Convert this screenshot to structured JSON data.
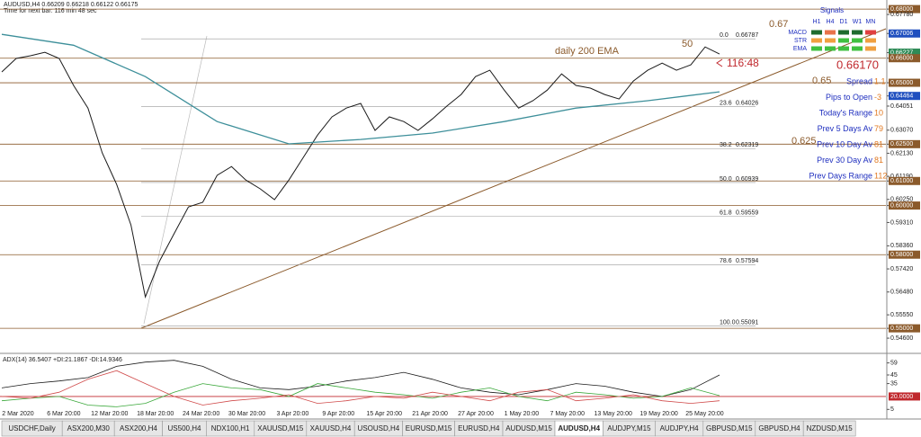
{
  "header": {
    "symbol_line": "AUDUSD,H4  0.66209 0.66218 0.66122 0.66175",
    "timer": "Time for next bar: 116 min 48 sec"
  },
  "chart_data": {
    "type": "line",
    "ylim": [
      0.5409,
      0.6837
    ],
    "yticks": [
      {
        "value": 0.68,
        "label": "0.68000",
        "box": "#8b5a2b"
      },
      {
        "value": 0.6778,
        "label": "0.67780"
      },
      {
        "value": 0.67006,
        "label": "0.67006",
        "box": "#1f4fbf"
      },
      {
        "value": 0.66227,
        "label": "0.66227",
        "box": "#2e8b57"
      },
      {
        "value": 0.66,
        "label": "0.66000",
        "box": "#8b5a2b"
      },
      {
        "value": 0.65,
        "label": "0.65000",
        "box": "#8b5a2b"
      },
      {
        "value": 0.64464,
        "label": "0.64464",
        "box": "#1f4fbf"
      },
      {
        "value": 0.6405,
        "label": "0.64051"
      },
      {
        "value": 0.6307,
        "label": "0.63070"
      },
      {
        "value": 0.625,
        "label": "0.62500",
        "box": "#8b5a2b"
      },
      {
        "value": 0.6213,
        "label": "0.62130"
      },
      {
        "value": 0.6119,
        "label": "0.61190"
      },
      {
        "value": 0.61,
        "label": "0.61000",
        "box": "#8b5a2b"
      },
      {
        "value": 0.6025,
        "label": "0.60250"
      },
      {
        "value": 0.6,
        "label": "0.60000",
        "box": "#8b5a2b"
      },
      {
        "value": 0.5931,
        "label": "0.59310"
      },
      {
        "value": 0.5836,
        "label": "0.58360"
      },
      {
        "value": 0.58,
        "label": "0.58000",
        "box": "#8b5a2b"
      },
      {
        "value": 0.5742,
        "label": "0.57420"
      },
      {
        "value": 0.5648,
        "label": "0.56480"
      },
      {
        "value": 0.5555,
        "label": "0.55550"
      },
      {
        "value": 0.55,
        "label": "0.55000",
        "box": "#8b5a2b"
      },
      {
        "value": 0.546,
        "label": "0.54600"
      }
    ],
    "xticks": [
      "2 Mar 2020",
      "6 Mar 20:00",
      "12 Mar 20:00",
      "18 Mar 20:00",
      "24 Mar 20:00",
      "30 Mar 20:00",
      "3 Apr 20:00",
      "9 Apr 20:00",
      "15 Apr 20:00",
      "21 Apr 20:00",
      "27 Apr 20:00",
      "1 May 20:00",
      "7 May 20:00",
      "13 May 20:00",
      "19 May 20:00",
      "25 May 20:00"
    ],
    "levels": [
      0.68,
      0.66,
      0.65,
      0.625,
      0.61,
      0.6,
      0.58,
      0.55
    ],
    "fib": [
      {
        "level": "0.0",
        "price": 0.66787
      },
      {
        "level": "23.6",
        "price": 0.64026
      },
      {
        "level": "38.2",
        "price": 0.62319
      },
      {
        "level": "50.0",
        "price": 0.60939
      },
      {
        "level": "61.8",
        "price": 0.59559
      },
      {
        "level": "78.6",
        "price": 0.57594
      },
      {
        "level": "100.0",
        "price": 0.55091
      }
    ],
    "series": [
      {
        "color": "#1a1a1a",
        "values": [
          0.6544,
          0.6599,
          0.661,
          0.6624,
          0.6599,
          0.6489,
          0.6397,
          0.6214,
          0.6086,
          0.5921,
          0.5628,
          0.5775,
          0.5885,
          0.5994,
          0.6013,
          0.6123,
          0.6159,
          0.6104,
          0.6068,
          0.6024,
          0.6104,
          0.6196,
          0.6287,
          0.6361,
          0.6397,
          0.6416,
          0.6306,
          0.6361,
          0.6342,
          0.6306,
          0.6353,
          0.6405,
          0.6452,
          0.6525,
          0.6551,
          0.647,
          0.6397,
          0.6427,
          0.647,
          0.6536,
          0.6489,
          0.6478,
          0.6452,
          0.6434,
          0.6507,
          0.6551,
          0.658,
          0.6551,
          0.6573,
          0.6646,
          0.6617
        ]
      },
      {
        "color": "#3d8f9a",
        "values": [
          0.6697,
          0.6653,
          0.6525,
          0.6342,
          0.6251,
          0.6269,
          0.6295,
          0.6342,
          0.6397,
          0.6427,
          0.6463
        ]
      }
    ],
    "annotations": [
      {
        "text": "0.67",
        "color": "#8b5a2b"
      },
      {
        "text": "0.65",
        "color": "#8b5a2b"
      },
      {
        "text": "0.625",
        "color": "#8b5a2b"
      },
      {
        "text": "daily 200 EMA",
        "color": "#8b5a2b"
      },
      {
        "text": "50",
        "color": "#8b5a2b"
      },
      {
        "text": "116:48",
        "color": "#c0282d"
      },
      {
        "text": "0.66170",
        "color": "#c0282d"
      }
    ]
  },
  "info": [
    {
      "label": "Spread",
      "value": 1.1
    },
    {
      "label": "Pips to Open",
      "value": -3
    },
    {
      "label": "Today's Range",
      "value": 10
    },
    {
      "label": "Prev 5 Days Av",
      "value": 79
    },
    {
      "label": "Prev 10 Day Av",
      "value": 81
    },
    {
      "label": "Prev 30 Day Av",
      "value": 81
    },
    {
      "label": "Prev Days Range",
      "value": 112
    }
  ],
  "signals": {
    "title": "Signals",
    "columns": [
      "H1",
      "H4",
      "D1",
      "W1",
      "MN"
    ],
    "rows": [
      "MACD",
      "STR",
      "EMA"
    ],
    "colors": [
      [
        "#1e6b2e",
        "#e8734a",
        "#1e6b2e",
        "#1e6b2e",
        "#e04040"
      ],
      [
        "#f0a040",
        "#f0a040",
        "#40c040",
        "#40c040",
        "#f0a040"
      ],
      [
        "#40c040",
        "#40c040",
        "#40c040",
        "#40c040",
        "#f0a040"
      ]
    ]
  },
  "indicator": {
    "type": "line",
    "label": "ADX(14) 36.5407 +DI:21.1867 -DI:14.9346",
    "ylim": [
      -2,
      68
    ],
    "yticks": [
      59,
      45,
      35,
      {
        "value": 20,
        "label": "20.0000",
        "box": "#c0282d"
      },
      5
    ],
    "series": [
      {
        "color": "#1a1a1a",
        "values": [
          30,
          35,
          38,
          42,
          55,
          60,
          62,
          55,
          40,
          30,
          28,
          32,
          38,
          42,
          48,
          40,
          30,
          25,
          22,
          28,
          35,
          32,
          25,
          20,
          28,
          45
        ]
      },
      {
        "color": "#3aa83a",
        "values": [
          15,
          18,
          20,
          10,
          8,
          12,
          25,
          35,
          30,
          28,
          20,
          35,
          30,
          25,
          22,
          18,
          25,
          30,
          20,
          15,
          25,
          22,
          18,
          20,
          30,
          21
        ]
      },
      {
        "color": "#d04a4a",
        "values": [
          20,
          18,
          25,
          40,
          50,
          35,
          20,
          10,
          15,
          18,
          22,
          12,
          15,
          20,
          18,
          25,
          20,
          15,
          25,
          28,
          15,
          18,
          22,
          15,
          12,
          15
        ]
      }
    ]
  },
  "tabs": {
    "items": [
      "USDCHF,Daily",
      "ASX200,M30",
      "ASX200,H4",
      "US500,H4",
      "NDX100,H1",
      "XAUUSD,M15",
      "XAUUSD,H4",
      "USOUSD,H4",
      "EURUSD,M15",
      "EURUSD,H4",
      "AUDUSD,M15",
      "AUDUSD,H4",
      "AUDJPY,M15",
      "AUDJPY,H4",
      "GBPUSD,M15",
      "GBPUSD,H4",
      "NZDUSD,M15"
    ],
    "active": 11
  }
}
